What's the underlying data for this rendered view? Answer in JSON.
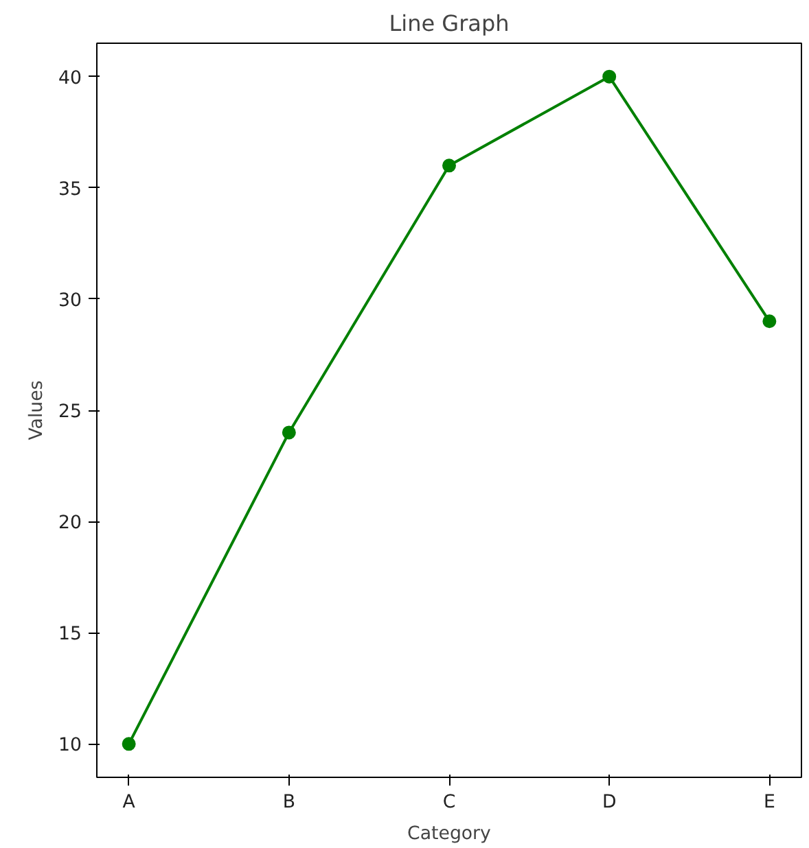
{
  "chart_data": {
    "type": "line",
    "title": "Line Graph",
    "xlabel": "Category",
    "ylabel": "Values",
    "categories": [
      "A",
      "B",
      "C",
      "D",
      "E"
    ],
    "series": [
      {
        "color": "#008000",
        "values": [
          10,
          24,
          36,
          40,
          29
        ]
      }
    ],
    "ylim": [
      8.5,
      41.5
    ],
    "yticks": [
      10,
      15,
      20,
      25,
      30,
      35,
      40
    ],
    "marker": "circle",
    "line_style": "solid",
    "grid": false
  }
}
